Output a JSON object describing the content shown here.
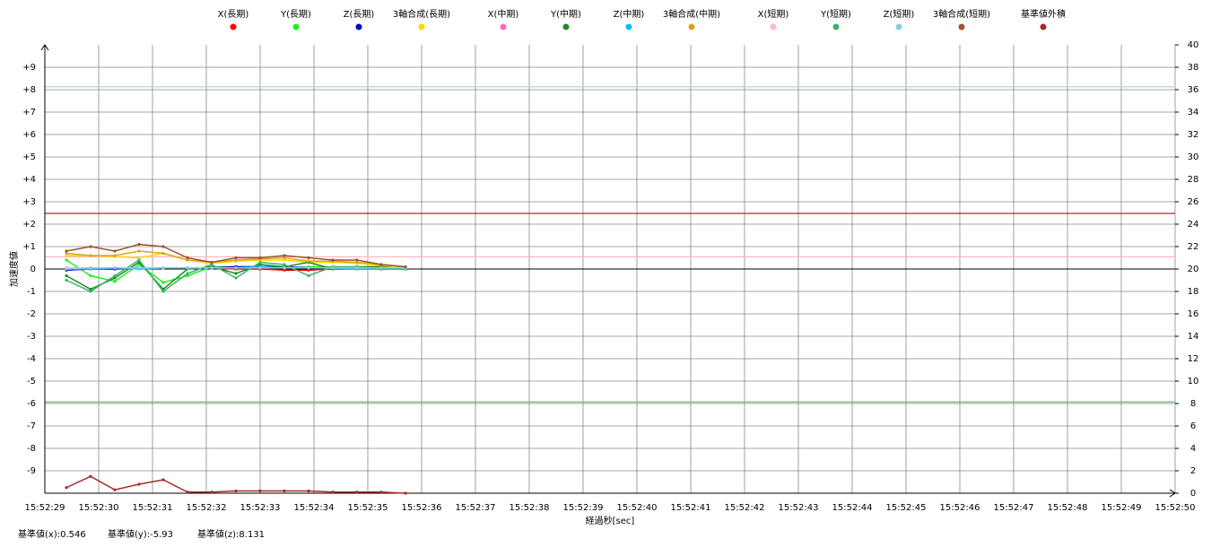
{
  "chart_data": {
    "type": "line",
    "x_label": "経過秒[sec]",
    "y_label": "加速度値",
    "grid": true,
    "legend": "top",
    "xlim": [
      0,
      21
    ],
    "xticks": [
      {
        "value": 0,
        "label": "15:52:29"
      },
      {
        "value": 1,
        "label": "15:52:30"
      },
      {
        "value": 2,
        "label": "15:52:31"
      },
      {
        "value": 3,
        "label": "15:52:32"
      },
      {
        "value": 4,
        "label": "15:52:33"
      },
      {
        "value": 5,
        "label": "15:52:34"
      },
      {
        "value": 6,
        "label": "15:52:35"
      },
      {
        "value": 7,
        "label": "15:52:36"
      },
      {
        "value": 8,
        "label": "15:52:37"
      },
      {
        "value": 9,
        "label": "15:52:38"
      },
      {
        "value": 10,
        "label": "15:52:39"
      },
      {
        "value": 11,
        "label": "15:52:40"
      },
      {
        "value": 12,
        "label": "15:52:41"
      },
      {
        "value": 13,
        "label": "15:52:42"
      },
      {
        "value": 14,
        "label": "15:52:43"
      },
      {
        "value": 15,
        "label": "15:52:44"
      },
      {
        "value": 16,
        "label": "15:52:45"
      },
      {
        "value": 17,
        "label": "15:52:46"
      },
      {
        "value": 18,
        "label": "15:52:47"
      },
      {
        "value": 19,
        "label": "15:52:48"
      },
      {
        "value": 20,
        "label": "15:52:49"
      },
      {
        "value": 21,
        "label": "15:52:50"
      }
    ],
    "ylim": [
      -10,
      10
    ],
    "yticks": [
      {
        "value": 9,
        "label": "+9"
      },
      {
        "value": 8,
        "label": "+8"
      },
      {
        "value": 7,
        "label": "+7"
      },
      {
        "value": 6,
        "label": "+6"
      },
      {
        "value": 5,
        "label": "+5"
      },
      {
        "value": 4,
        "label": "+4"
      },
      {
        "value": 3,
        "label": "+3"
      },
      {
        "value": 2,
        "label": "+2"
      },
      {
        "value": 1,
        "label": "+1"
      },
      0,
      -1,
      -2,
      -3,
      -4,
      -5,
      -6,
      -7,
      -8,
      -9
    ],
    "y2lim": [
      0,
      40
    ],
    "y2ticks": [
      0,
      2,
      4,
      6,
      8,
      10,
      12,
      14,
      16,
      18,
      20,
      22,
      24,
      26,
      28,
      30,
      32,
      34,
      36,
      38,
      40
    ],
    "reference_lines": [
      {
        "label": "基準値(x):0.546",
        "value": 0.546,
        "color": "#ffb6c1"
      },
      {
        "label": "基準値(y):-5.93",
        "value": -5.93,
        "color": "#6fb86f"
      },
      {
        "label": "基準値(z):8.131",
        "value": 8.131,
        "color": "#add8e6"
      },
      {
        "value": 2.48,
        "color": "#a52a2a"
      }
    ],
    "x": [
      0.4,
      0.85,
      1.3,
      1.75,
      2.2,
      2.65,
      3.1,
      3.55,
      4.0,
      4.45,
      4.9,
      5.35,
      5.8,
      6.25,
      6.7
    ],
    "series": [
      {
        "name": "X(長期)",
        "color": "#ff0000",
        "values": [
          0,
          0.05,
          0.05,
          0.05,
          0.05,
          0.05,
          0.05,
          0,
          0,
          -0.05,
          -0.05,
          0,
          0,
          0,
          0
        ]
      },
      {
        "name": "Y(長期)",
        "color": "#22ee22",
        "values": [
          0.4,
          -0.3,
          -0.55,
          0.2,
          -0.6,
          -0.3,
          0.1,
          0.1,
          0.1,
          0.05,
          0.1,
          0.1,
          0.05,
          0.05,
          0.05
        ]
      },
      {
        "name": "Z(長期)",
        "color": "#0000cc",
        "values": [
          -0.05,
          0,
          0,
          0.05,
          0.05,
          0.05,
          0.05,
          0.1,
          0.1,
          0.1,
          0.05,
          0.05,
          0.05,
          0.05,
          0.05
        ]
      },
      {
        "name": "3軸合成(長期)",
        "color": "#ffd700",
        "values": [
          0.6,
          0.6,
          0.55,
          0.5,
          0.7,
          0.4,
          0.25,
          0.35,
          0.4,
          0.4,
          0.3,
          0.3,
          0.25,
          0.15,
          0.1
        ]
      },
      {
        "name": "X(中期)",
        "color": "#ff69b4",
        "values": [
          0.05,
          0.05,
          0.05,
          0.05,
          0.05,
          0.05,
          0.05,
          0.05,
          0.05,
          0.05,
          0.05,
          0.05,
          0.05,
          0.05,
          0.05
        ]
      },
      {
        "name": "Y(中期)",
        "color": "#228b22",
        "values": [
          -0.3,
          -0.9,
          -0.4,
          0.3,
          -0.9,
          0,
          0.1,
          -0.2,
          0.2,
          0.1,
          0.3,
          0,
          0.1,
          0.1,
          0
        ]
      },
      {
        "name": "Z(中期)",
        "color": "#00bfff",
        "values": [
          0,
          0,
          0.05,
          0,
          0.05,
          0.05,
          0.05,
          0.05,
          0.1,
          0.05,
          0.05,
          0.05,
          0,
          0,
          0
        ]
      },
      {
        "name": "3軸合成(中期)",
        "color": "#daa520",
        "values": [
          0.7,
          0.6,
          0.6,
          0.8,
          0.7,
          0.4,
          0.3,
          0.4,
          0.45,
          0.5,
          0.35,
          0.35,
          0.3,
          0.2,
          0.1
        ]
      },
      {
        "name": "X(短期)",
        "color": "#ffb6c1",
        "values": [
          0.05,
          0.05,
          0.05,
          0.05,
          0.05,
          0.05,
          0.05,
          0.05,
          0.05,
          0.05,
          0.05,
          0.05,
          0.05,
          0.05,
          0.05
        ]
      },
      {
        "name": "Y(短期)",
        "color": "#3cb371",
        "values": [
          -0.5,
          -1.0,
          -0.3,
          0.4,
          -1.0,
          -0.2,
          0.2,
          -0.4,
          0.3,
          0.2,
          -0.3,
          0.1,
          0.1,
          0,
          0
        ]
      },
      {
        "name": "Z(短期)",
        "color": "#87ceeb",
        "values": [
          0,
          0.05,
          0.05,
          0.05,
          0.05,
          0.05,
          0.05,
          0.05,
          0.05,
          0.05,
          0.05,
          0.05,
          0.05,
          0.05,
          0.05
        ]
      },
      {
        "name": "3軸合成(短期)",
        "color": "#a0522d",
        "values": [
          0.8,
          1.0,
          0.8,
          1.1,
          1.0,
          0.5,
          0.3,
          0.5,
          0.5,
          0.6,
          0.5,
          0.4,
          0.4,
          0.2,
          0.1
        ]
      },
      {
        "name": "基準値外積",
        "color": "#a52a2a",
        "axis": "y2",
        "values": [
          0.5,
          1.5,
          0.3,
          0.8,
          1.2,
          0.1,
          0.1,
          0.2,
          0.2,
          0.2,
          0.2,
          0.1,
          0.1,
          0.1,
          0
        ]
      }
    ]
  }
}
